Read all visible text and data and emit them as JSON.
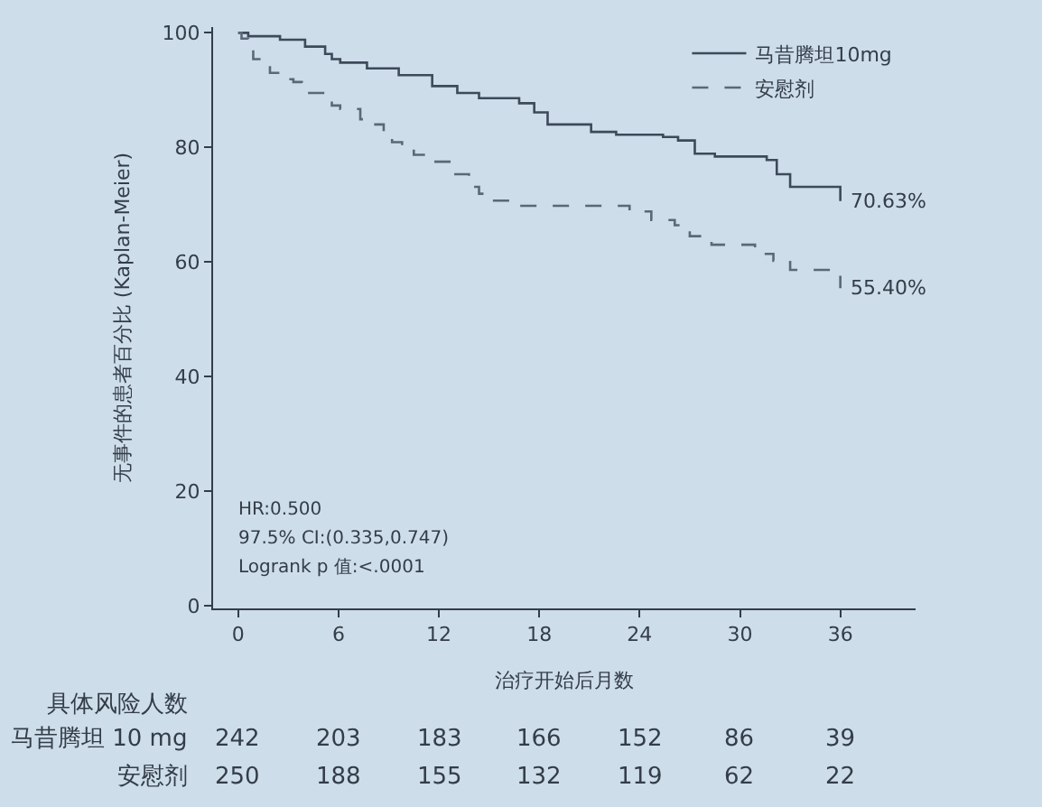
{
  "chart_data": {
    "type": "step",
    "xlabel": "治疗开始后月数",
    "ylabel": "无事件的患者百分比 (Kaplan-Meier)",
    "xlim": [
      -1.5,
      40.5
    ],
    "ylim": [
      -0.5,
      101
    ],
    "xticks": [
      0,
      6,
      12,
      18,
      24,
      30,
      36
    ],
    "yticks": [
      0,
      20,
      40,
      60,
      80,
      100
    ],
    "grid": false,
    "legend": "top right",
    "series": [
      {
        "name": "马昔腾坦10mg",
        "color": "#3d4a5a",
        "line_style": "solid",
        "x": [
          0,
          0.6,
          2.5,
          4,
          5.2,
          5.6,
          6.1,
          7.7,
          9.6,
          11.6,
          13.1,
          14.4,
          16.8,
          17.7,
          18.5,
          21.1,
          22.6,
          25.4,
          26.3,
          27.3,
          28.5,
          31.6,
          32.2,
          33.0,
          36
        ],
        "values": [
          100,
          99.4,
          98.8,
          97.6,
          96.3,
          95.4,
          94.8,
          93.8,
          92.6,
          90.7,
          89.5,
          88.6,
          87.7,
          86.1,
          84,
          82.7,
          82.2,
          81.8,
          81.2,
          78.9,
          78.4,
          77.8,
          75.3,
          73.1,
          70.63
        ]
      },
      {
        "name": "安慰剂",
        "color": "#5a6878",
        "line_style": "dashed",
        "x": [
          0,
          0.2,
          0.6,
          0.9,
          1.7,
          1.9,
          2.5,
          3.3,
          3.8,
          5.6,
          6.1,
          7.3,
          8.2,
          8.7,
          9.2,
          9.8,
          10.5,
          11.3,
          12.7,
          13.8,
          14.4,
          15.2,
          16.2,
          23.4,
          24.7,
          26.1,
          27,
          28.3,
          30.9,
          32,
          33,
          36
        ],
        "values": [
          100,
          99,
          98,
          95.4,
          94.8,
          93,
          91.9,
          91.4,
          89.5,
          87.3,
          86.7,
          84.9,
          84,
          82.4,
          80.9,
          80,
          78.7,
          77.5,
          75.3,
          73.1,
          71.9,
          70.7,
          69.8,
          68.8,
          67.3,
          66.4,
          64.5,
          63,
          61.4,
          60.2,
          58.6,
          55.4
        ]
      }
    ],
    "annotations": [
      {
        "text": "70.63%",
        "x": 36,
        "y": 70.63
      },
      {
        "text": "55.40%",
        "x": 36,
        "y": 55.4
      },
      "HR:0.500",
      "97.5% CI:(0.335,0.747)",
      "Logrank p 值:<.0001",
      "具体风险人数",
      "马昔腾坦 10 mg",
      "安慰剂",
      "242",
      "203",
      "183",
      "166",
      "152",
      "86",
      "39",
      "250",
      "188",
      "155",
      "132",
      "119",
      "62",
      "22"
    ]
  }
}
